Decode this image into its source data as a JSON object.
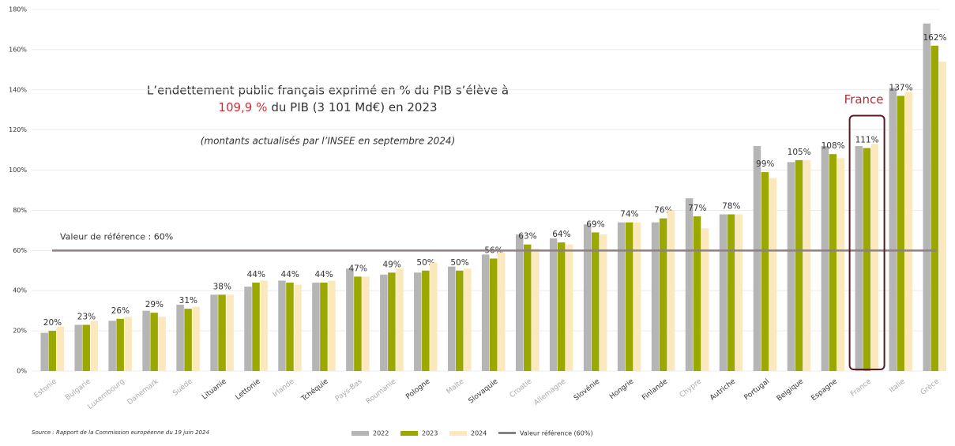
{
  "chart_data": {
    "type": "bar",
    "annotation": {
      "line1": "L’endettement public français exprimé en % du PIB s’élève à",
      "highlight": "109,9 %",
      "line2": "du PIB (3 101 Md€) en 2023",
      "note": "(montants actualisés par l’INSEE en septembre 2024)"
    },
    "source": "Source : Rapport de la Commission européenne du 19 juin 2024",
    "categories": [
      "Estonie",
      "Bulgarie",
      "Luxembourg",
      "Danemark",
      "Suède",
      "Lituanie",
      "Lettonie",
      "Irlande",
      "Tchéquie",
      "Pays-Bas",
      "Roumanie",
      "Pologne",
      "Malte",
      "Slovaquie",
      "Croatie",
      "Allemagne",
      "Slovénie",
      "Hongrie",
      "Finlande",
      "Chypre",
      "Autriche",
      "Portugal",
      "Belgique",
      "Espagne",
      "France",
      "Italie",
      "Grèce"
    ],
    "category_colors": [
      "#aaa",
      "#aaa",
      "#aaa",
      "#aaa",
      "#aaa",
      "#333",
      "#333",
      "#aaa",
      "#333",
      "#aaa",
      "#aaa",
      "#333",
      "#aaa",
      "#333",
      "#aaa",
      "#aaa",
      "#333",
      "#333",
      "#333",
      "#aaa",
      "#333",
      "#333",
      "#333",
      "#333",
      "#aaa",
      "#aaa",
      "#aaa"
    ],
    "series": [
      {
        "name": "2022",
        "color": "#b5b5b5",
        "values": [
          19,
          23,
          25,
          30,
          33,
          38,
          42,
          45,
          44,
          51,
          48,
          49,
          52,
          58,
          68,
          66,
          73,
          74,
          74,
          86,
          78,
          112,
          104,
          112,
          112,
          141,
          173
        ]
      },
      {
        "name": "2023",
        "color": "#9aa800",
        "values": [
          20,
          23,
          26,
          29,
          31,
          38,
          44,
          44,
          44,
          47,
          49,
          50,
          50,
          56,
          63,
          64,
          69,
          74,
          76,
          77,
          78,
          99,
          105,
          108,
          111,
          137,
          162
        ],
        "value_labels": [
          "20%",
          "23%",
          "26%",
          "29%",
          "31%",
          "38%",
          "44%",
          "44%",
          "44%",
          "47%",
          "49%",
          "50%",
          "50%",
          "56%",
          "63%",
          "64%",
          "69%",
          "74%",
          "76%",
          "77%",
          "78%",
          "99%",
          "105%",
          "108%",
          "111%",
          "137%",
          "162%"
        ]
      },
      {
        "name": "2024",
        "color": "#fbe8bd",
        "values": [
          22,
          25,
          27,
          27,
          32,
          38,
          45,
          43,
          45,
          47,
          51,
          54,
          51,
          59,
          61,
          63,
          68,
          74,
          80,
          71,
          78,
          96,
          105,
          106,
          113,
          139,
          154
        ]
      }
    ],
    "reference_line": {
      "value": 60,
      "label": "Valeur de référence : 60%",
      "legend": "Valeur référence (60%)",
      "color": "#8c8080"
    },
    "highlight_category": {
      "label": "France",
      "color": "#5a1a1f",
      "label_color": "#a8323e"
    },
    "ylim": [
      0,
      180
    ],
    "yticks": [
      {
        "value": 0,
        "label": "0%"
      },
      {
        "value": 20,
        "label": "20%"
      },
      {
        "value": 40,
        "label": "40%"
      },
      {
        "value": 60,
        "label": "60%"
      },
      {
        "value": 80,
        "label": "80%"
      },
      {
        "value": 100,
        "label": "100%"
      },
      {
        "value": 120,
        "label": "120%"
      },
      {
        "value": 140,
        "label": "140%"
      },
      {
        "value": 160,
        "label": "160%"
      },
      {
        "value": 180,
        "label": "180%"
      }
    ],
    "grid": true
  }
}
